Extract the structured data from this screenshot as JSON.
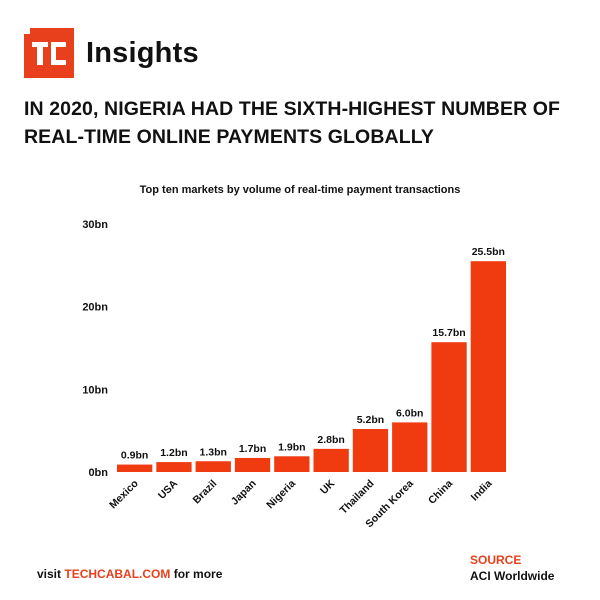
{
  "brand": {
    "logo_text": "TC",
    "name": "Insights",
    "accent": "#e8401c"
  },
  "headline": "IN 2020, NIGERIA HAD THE SIXTH-HIGHEST NUMBER OF REAL-TIME ONLINE PAYMENTS GLOBALLY",
  "footer": {
    "visit_prefix": "visit",
    "visit_link": "TECHCABAL.COM",
    "visit_suffix": "for more",
    "source_label": "SOURCE",
    "source_value": "ACI Worldwide"
  },
  "chart_data": {
    "type": "bar",
    "title": "Top ten markets by volume of real-time payment transactions",
    "xlabel": "",
    "ylabel": "",
    "categories": [
      "Mexico",
      "USA",
      "Brazil",
      "Japan",
      "Nigeria",
      "UK",
      "Thailand",
      "South Korea",
      "China",
      "India"
    ],
    "values": [
      0.9,
      1.2,
      1.3,
      1.7,
      1.9,
      2.8,
      5.2,
      6.0,
      15.7,
      25.5
    ],
    "data_labels": [
      "0.9bn",
      "1.2bn",
      "1.3bn",
      "1.7bn",
      "1.9bn",
      "2.8bn",
      "5.2bn",
      "6.0bn",
      "15.7bn",
      "25.5bn"
    ],
    "y_ticks": [
      0,
      10,
      20,
      30
    ],
    "y_tick_labels": [
      "0bn",
      "10bn",
      "20bn",
      "30bn"
    ],
    "ylim": [
      0,
      30
    ],
    "grid": false,
    "bar_color": "#f03a0f"
  }
}
